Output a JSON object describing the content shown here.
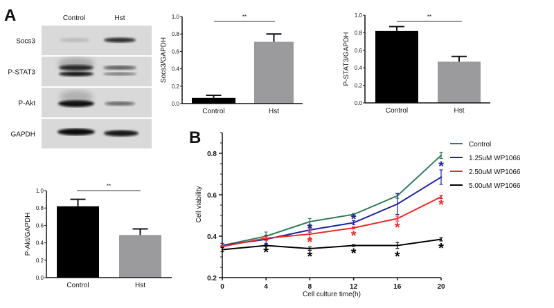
{
  "panels": {
    "a_label": "A",
    "b_label": "B"
  },
  "blot": {
    "lanes": [
      "Control",
      "Hst"
    ],
    "rows": [
      "Socs3",
      "P-STAT3",
      "P-Akt",
      "GAPDH"
    ]
  },
  "chart_data": [
    {
      "type": "bar",
      "id": "socs3",
      "categories": [
        "Control",
        "Hst"
      ],
      "values": [
        0.065,
        0.71
      ],
      "errors": [
        0.03,
        0.09
      ],
      "colors": [
        "#000000",
        "#9b9b9d"
      ],
      "ylabel": "Socs3/GAPDH",
      "ylim": [
        0,
        1.0
      ],
      "yticks": [
        "0.0",
        "0.2",
        "0.4",
        "0.6",
        "0.8",
        "1.0"
      ],
      "significance": "**"
    },
    {
      "type": "bar",
      "id": "pstat3",
      "categories": [
        "Control",
        "Hst"
      ],
      "values": [
        0.82,
        0.47
      ],
      "errors": [
        0.05,
        0.06
      ],
      "colors": [
        "#000000",
        "#9b9b9d"
      ],
      "ylabel": "P-STAT3/GAPDH",
      "ylim": [
        0,
        1.0
      ],
      "yticks": [
        "0.0",
        "0.2",
        "0.4",
        "0.6",
        "0.8",
        "1.0"
      ],
      "significance": "**"
    },
    {
      "type": "bar",
      "id": "pakt",
      "categories": [
        "Control",
        "Hst"
      ],
      "values": [
        0.82,
        0.49
      ],
      "errors": [
        0.08,
        0.07
      ],
      "colors": [
        "#000000",
        "#9b9b9d"
      ],
      "ylabel": "P-Akt/GAPDH",
      "ylim": [
        0,
        1.0
      ],
      "yticks": [
        "0.0",
        "0.2",
        "0.4",
        "0.6",
        "0.8",
        "1.0"
      ],
      "significance": "**"
    },
    {
      "type": "line",
      "id": "viability",
      "x": [
        0,
        4,
        8,
        12,
        16,
        20
      ],
      "xticks": [
        "0",
        "4",
        "8",
        "12",
        "16",
        "20"
      ],
      "yticks": [
        "0.2",
        "0.4",
        "0.6",
        "0.8"
      ],
      "xlabel": "Cell culture time(h)",
      "ylabel": "Cell viability",
      "xlim": [
        0,
        20
      ],
      "ylim": [
        0.2,
        0.9
      ],
      "legend_position": "right",
      "series": [
        {
          "name": "Control",
          "color": "#2e7d5b",
          "values": [
            0.355,
            0.4,
            0.47,
            0.505,
            0.595,
            0.79
          ],
          "errors": [
            0.01,
            0.02,
            0.015,
            0.005,
            0.012,
            0.015
          ],
          "stars": []
        },
        {
          "name": "1.25uM WP1066",
          "color": "#1f1fa8",
          "values": [
            0.355,
            0.385,
            0.43,
            0.465,
            0.555,
            0.685
          ],
          "errors": [
            0.01,
            0.02,
            0.01,
            0.01,
            0.05,
            0.035
          ],
          "stars": [
            {
              "x": 8,
              "y": 0.445
            },
            {
              "x": 12,
              "y": 0.49
            },
            {
              "x": 20,
              "y": 0.745
            }
          ]
        },
        {
          "name": "2.50uM WP1066",
          "color": "#f02828",
          "values": [
            0.35,
            0.39,
            0.41,
            0.44,
            0.485,
            0.59
          ],
          "errors": [
            0.005,
            0.01,
            0.02,
            0.005,
            0.012,
            0.008
          ],
          "stars": [
            {
              "x": 8,
              "y": 0.38
            },
            {
              "x": 12,
              "y": 0.41
            },
            {
              "x": 16,
              "y": 0.45
            },
            {
              "x": 20,
              "y": 0.56
            }
          ]
        },
        {
          "name": "5.00uM WP1066",
          "color": "#000000",
          "values": [
            0.335,
            0.355,
            0.34,
            0.355,
            0.355,
            0.385
          ],
          "errors": [
            0.01,
            0.005,
            0.008,
            0.004,
            0.015,
            0.008
          ],
          "stars": [
            {
              "x": 4,
              "y": 0.33
            },
            {
              "x": 8,
              "y": 0.31
            },
            {
              "x": 12,
              "y": 0.325
            },
            {
              "x": 16,
              "y": 0.31
            },
            {
              "x": 20,
              "y": 0.35
            }
          ]
        }
      ],
      "star_symbol": "*"
    }
  ]
}
